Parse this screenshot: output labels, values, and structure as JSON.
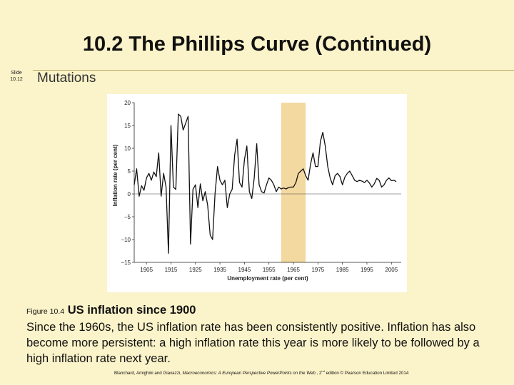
{
  "slide": {
    "title": "10.2  The Phillips Curve (Continued)",
    "number_label": "Slide",
    "number": "10.12",
    "subtitle": "Mutations"
  },
  "caption": {
    "figure_number": "Figure 10.4",
    "figure_title": "US inflation since 1900",
    "body": "Since the 1960s, the US inflation rate has been consistently positive. Inflation has also become more persistent: a high inflation rate this year is more likely to be followed by a high inflation rate next year."
  },
  "credit": {
    "prefix": "Blanchard, Amighini and Giavazzi, ",
    "book": "Macroeconomics: A European Perspective PowerPoints on the Web",
    "edition_num": " , 2",
    "edition_sup": "nd",
    "suffix": " edition © Pearson Education Limited 2014"
  },
  "chart_data": {
    "type": "line",
    "title": "",
    "xlabel": "Unemployment rate (per cent)",
    "ylabel": "Inflation rate (per cent)",
    "xlim": [
      1900,
      2009
    ],
    "ylim": [
      -15,
      20
    ],
    "x_ticks": [
      1905,
      1915,
      1925,
      1935,
      1945,
      1955,
      1965,
      1975,
      1985,
      1995,
      2005
    ],
    "y_ticks": [
      20,
      15,
      10,
      5,
      0,
      -5,
      -10,
      -15
    ],
    "highlight_band": [
      1960,
      1970
    ],
    "band_color": "#f3d9a0",
    "line_color": "#111111",
    "grid": false,
    "series": [
      {
        "name": "",
        "x": [
          1900,
          1901,
          1902,
          1903,
          1904,
          1905,
          1906,
          1907,
          1908,
          1909,
          1910,
          1911,
          1912,
          1913,
          1914,
          1915,
          1916,
          1917,
          1918,
          1919,
          1920,
          1921,
          1922,
          1923,
          1924,
          1925,
          1926,
          1927,
          1928,
          1929,
          1930,
          1931,
          1932,
          1933,
          1934,
          1935,
          1936,
          1937,
          1938,
          1939,
          1940,
          1941,
          1942,
          1943,
          1944,
          1945,
          1946,
          1947,
          1948,
          1949,
          1950,
          1951,
          1952,
          1953,
          1954,
          1955,
          1956,
          1957,
          1958,
          1959,
          1960,
          1961,
          1962,
          1963,
          1964,
          1965,
          1966,
          1967,
          1968,
          1969,
          1970,
          1971,
          1972,
          1973,
          1974,
          1975,
          1976,
          1977,
          1978,
          1979,
          1980,
          1981,
          1982,
          1983,
          1984,
          1985,
          1986,
          1987,
          1988,
          1989,
          1990,
          1991,
          1992,
          1993,
          1994,
          1995,
          1996,
          1997,
          1998,
          1999,
          2000,
          2001,
          2002,
          2003,
          2004,
          2005,
          2006,
          2007
        ],
        "y": [
          2.0,
          5.5,
          -0.5,
          1.8,
          0.8,
          3.5,
          4.5,
          3.0,
          4.8,
          3.8,
          9.0,
          -0.5,
          4.5,
          1.5,
          -13.0,
          15.0,
          1.5,
          1.0,
          17.5,
          17.0,
          14.0,
          15.5,
          17.0,
          -11.0,
          1.0,
          2.0,
          -3.0,
          2.2,
          -1.5,
          0.5,
          -2.5,
          -9.0,
          -10.0,
          0.0,
          6.0,
          3.0,
          2.0,
          3.0,
          -3.0,
          0.0,
          1.0,
          8.5,
          12.0,
          2.5,
          1.5,
          7.5,
          10.5,
          0.5,
          -1.0,
          3.5,
          11.0,
          2.0,
          0.5,
          0.2,
          2.0,
          3.5,
          3.0,
          2.0,
          0.5,
          1.5,
          1.1,
          1.3,
          1.1,
          1.4,
          1.5,
          1.5,
          2.5,
          4.5,
          5.0,
          5.5,
          4.0,
          3.0,
          6.5,
          9.0,
          6.0,
          6.0,
          11.5,
          13.5,
          10.5,
          6.0,
          3.5,
          2.0,
          4.0,
          4.5,
          3.8,
          2.0,
          3.7,
          4.5,
          5.0,
          4.0,
          3.0,
          2.7,
          3.0,
          2.8,
          2.5,
          3.0,
          2.4,
          1.5,
          2.2,
          3.4,
          3.0,
          1.5,
          2.0,
          3.0,
          3.5,
          2.9,
          3.0,
          2.7
        ]
      }
    ]
  }
}
